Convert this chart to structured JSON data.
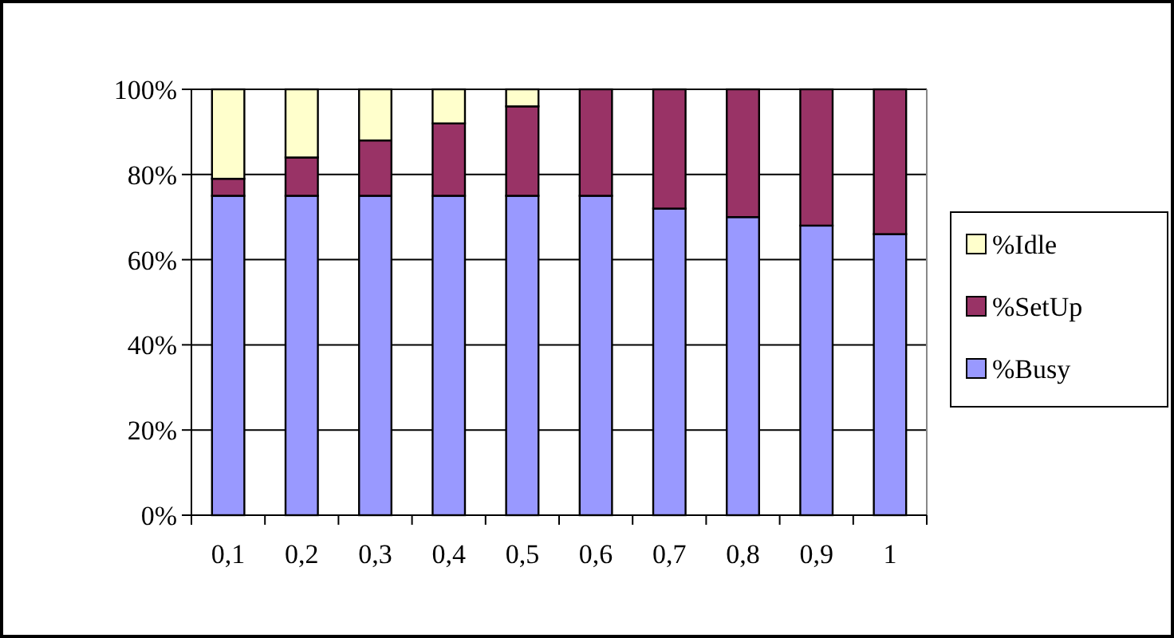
{
  "chart_data": {
    "type": "bar",
    "stacked": true,
    "categories": [
      "0,1",
      "0,2",
      "0,3",
      "0,4",
      "0,5",
      "0,6",
      "0,7",
      "0,8",
      "0,9",
      "1"
    ],
    "series": [
      {
        "name": "%Busy",
        "color": "#9999ff",
        "values": [
          75,
          75,
          75,
          75,
          75,
          75,
          72,
          70,
          68,
          66
        ]
      },
      {
        "name": "%SetUp",
        "color": "#993366",
        "values": [
          4,
          9,
          13,
          17,
          21,
          25,
          28,
          30,
          32,
          34
        ]
      },
      {
        "name": "%Idle",
        "color": "#ffffcc",
        "values": [
          21,
          16,
          12,
          8,
          4,
          0,
          0,
          0,
          0,
          0
        ]
      }
    ],
    "ylim": [
      0,
      100
    ],
    "yticks": [
      {
        "value": 0,
        "label": "0%"
      },
      {
        "value": 20,
        "label": "20%"
      },
      {
        "value": 40,
        "label": "40%"
      },
      {
        "value": 60,
        "label": "60%"
      },
      {
        "value": 80,
        "label": "80%"
      },
      {
        "value": 100,
        "label": "100%"
      }
    ],
    "grid": "y",
    "legend": "right"
  }
}
